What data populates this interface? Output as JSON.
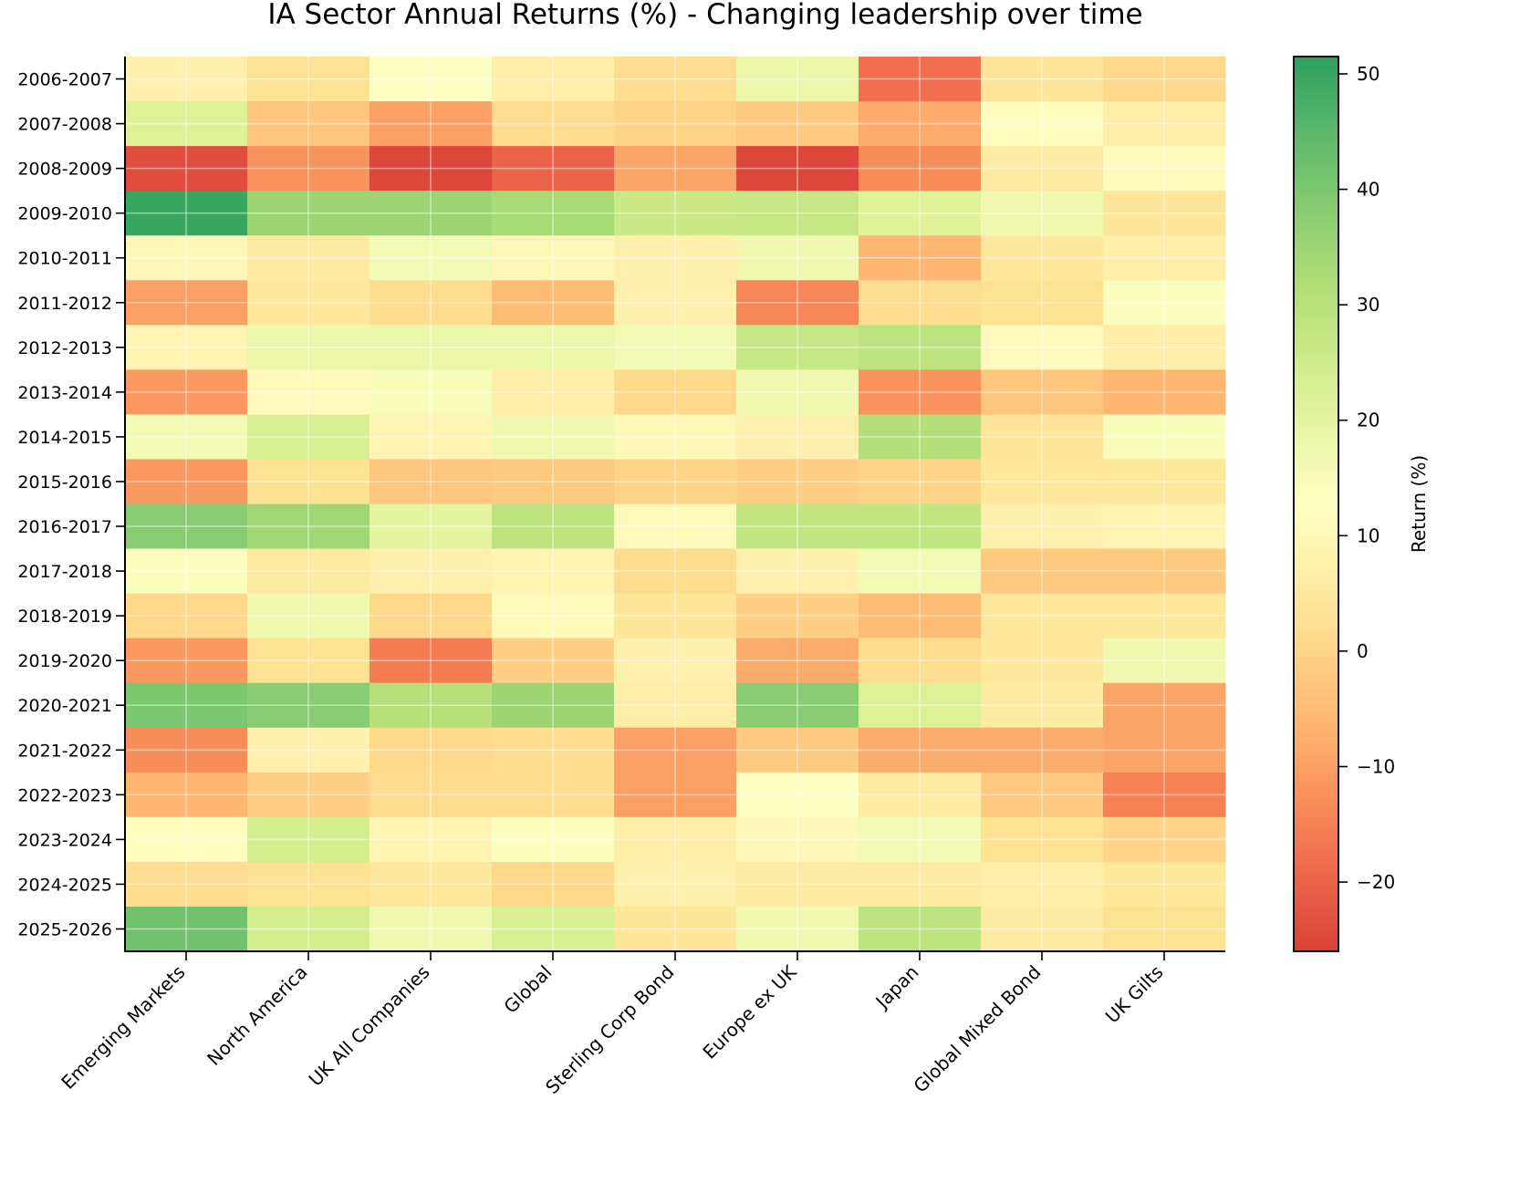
{
  "chart_data": {
    "type": "heatmap",
    "title": "IA Sector Annual Returns (%) - Changing leadership over time",
    "xlabel": "",
    "ylabel": "",
    "columns": [
      "Emerging Markets",
      "North America",
      "UK All Companies",
      "Global",
      "Sterling Corp Bond",
      "Europe ex UK",
      "Japan",
      "Global Mixed Bond",
      "UK Gilts"
    ],
    "rows": [
      "2006-2007",
      "2007-2008",
      "2008-2009",
      "2009-2010",
      "2010-2011",
      "2011-2012",
      "2012-2013",
      "2013-2014",
      "2014-2015",
      "2015-2016",
      "2016-2017",
      "2017-2018",
      "2018-2019",
      "2019-2020",
      "2020-2021",
      "2021-2022",
      "2022-2023",
      "2023-2024",
      "2024-2025",
      "2025-2026"
    ],
    "values": [
      [
        8,
        3,
        13,
        7,
        2,
        18,
        -18,
        4,
        1
      ],
      [
        22,
        -3,
        -10,
        2,
        0,
        -2,
        -8,
        12,
        7
      ],
      [
        -24,
        -12,
        -25,
        -20,
        -9,
        -25,
        -13,
        6,
        11
      ],
      [
        50,
        35,
        35,
        33,
        26,
        27,
        21,
        17,
        4
      ],
      [
        10,
        6,
        16,
        10,
        8,
        17,
        -6,
        5,
        7
      ],
      [
        -10,
        5,
        2,
        -5,
        8,
        -14,
        2,
        3,
        14
      ],
      [
        9,
        18,
        18,
        18,
        16,
        27,
        29,
        11,
        7
      ],
      [
        -11,
        11,
        15,
        7,
        1,
        17,
        -12,
        -3,
        -6
      ],
      [
        16,
        23,
        9,
        17,
        10,
        8,
        31,
        4,
        15
      ],
      [
        -11,
        3,
        -3,
        -2,
        0,
        -1,
        0,
        5,
        5
      ],
      [
        38,
        34,
        20,
        29,
        11,
        28,
        28,
        8,
        9
      ],
      [
        14,
        6,
        8,
        9,
        2,
        8,
        16,
        -2,
        -2
      ],
      [
        1,
        17,
        1,
        11,
        4,
        -1,
        -5,
        5,
        5
      ],
      [
        -11,
        3,
        -16,
        -1,
        8,
        -8,
        2,
        5,
        17
      ],
      [
        40,
        38,
        30,
        35,
        7,
        38,
        22,
        6,
        -9
      ],
      [
        -13,
        8,
        1,
        2,
        -10,
        -2,
        -8,
        -8,
        -9
      ],
      [
        -6,
        -1,
        2,
        2,
        -10,
        13,
        6,
        -2,
        -15
      ],
      [
        12,
        24,
        9,
        14,
        7,
        10,
        16,
        3,
        0
      ],
      [
        2,
        3,
        5,
        1,
        8,
        6,
        6,
        7,
        5
      ],
      [
        42,
        24,
        17,
        23,
        4,
        17,
        29,
        6,
        3
      ]
    ],
    "colorbar": {
      "label": "Return (%)",
      "min": -26,
      "max": 51.5,
      "ticks": [
        -20,
        -10,
        0,
        10,
        20,
        30,
        40,
        50
      ],
      "tick_labels": [
        "−20",
        "−10",
        "0",
        "10",
        "20",
        "30",
        "40",
        "50"
      ],
      "colormap": "RdYlGn"
    },
    "grid": true,
    "legend": "colorbar-right"
  }
}
